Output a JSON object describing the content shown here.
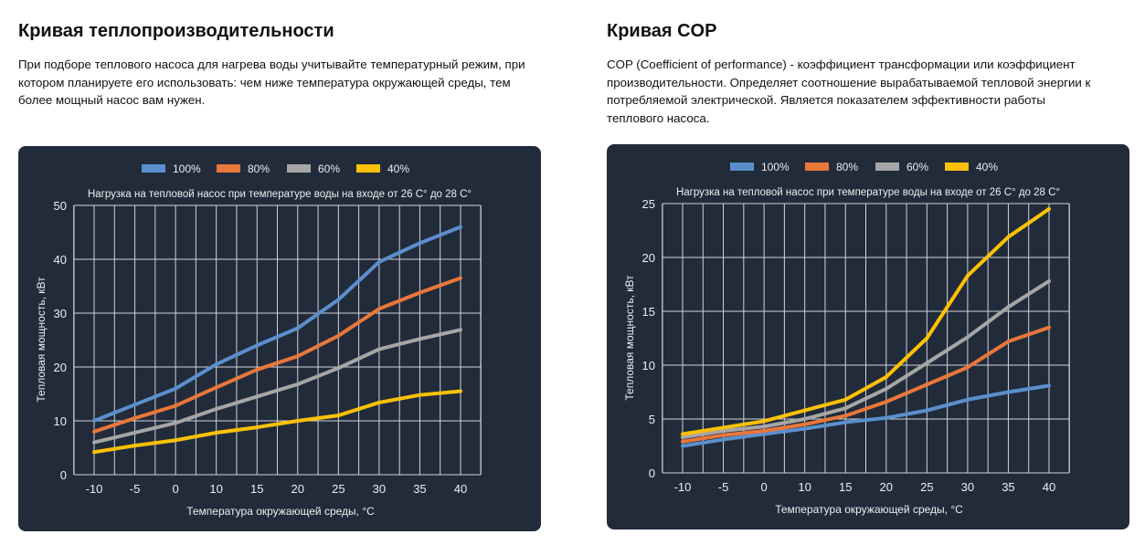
{
  "left": {
    "title": "Кривая теплопроизводительности",
    "text": "При подборе теплового насоса для нагрева воды учитывайте температурный режим, при котором планируете его использовать: чем ниже температура окружающей среды, тем более мощный насос вам нужен."
  },
  "right": {
    "title": "Кривая COP",
    "text": "COP (Coefficient of performance) - коэффициент трансформации или коэффициент производительности. Определяет соотношение вырабатываемой тепловой энергии к потребляемой электрической. Является показателем эффективности работы теплового насоса."
  },
  "chart_data": [
    {
      "type": "line",
      "title": "Нагрузка на тепловой насос при температуре воды на входе от 26 С° до 28 С°",
      "xlabel": "Температура окружающей среды, °C",
      "ylabel": "Тепловая мощность, кВт",
      "categories": [
        "-10",
        "-5",
        "0",
        "10",
        "15",
        "20",
        "25",
        "30",
        "35",
        "40"
      ],
      "ylim": [
        0,
        50
      ],
      "yticks": [
        "0",
        "10",
        "20",
        "30",
        "40",
        "50"
      ],
      "grid": true,
      "legend": "top",
      "series": [
        {
          "name": "100%",
          "color": "#5b8fcc",
          "values": [
            10,
            13,
            16,
            20.5,
            24,
            27.2,
            32.5,
            39.5,
            43,
            46
          ]
        },
        {
          "name": "80%",
          "color": "#e9773a",
          "values": [
            8,
            10.5,
            12.8,
            16.2,
            19.5,
            22,
            25.8,
            30.8,
            33.8,
            36.5
          ]
        },
        {
          "name": "60%",
          "color": "#a6a6a6",
          "values": [
            6,
            7.8,
            9.6,
            12.2,
            14.5,
            16.8,
            19.8,
            23.3,
            25.2,
            26.9
          ]
        },
        {
          "name": "40%",
          "color": "#fdc107",
          "values": [
            4.2,
            5.4,
            6.4,
            7.8,
            8.8,
            10,
            11,
            13.4,
            14.8,
            15.5
          ]
        }
      ]
    },
    {
      "type": "line",
      "title": "Нагрузка на тепловой насос при температуре воды на входе от 26 С° до 28 С°",
      "xlabel": "Температура окружающей среды, °C",
      "ylabel": "Тепловая мощность, кВт",
      "categories": [
        "-10",
        "-5",
        "0",
        "10",
        "15",
        "20",
        "25",
        "30",
        "35",
        "40"
      ],
      "ylim": [
        0,
        25
      ],
      "yticks": [
        "0",
        "5",
        "10",
        "15",
        "20",
        "25"
      ],
      "grid": true,
      "legend": "top",
      "series": [
        {
          "name": "100%",
          "color": "#5b8fcc",
          "values": [
            2.5,
            3.1,
            3.6,
            4.1,
            4.7,
            5.1,
            5.8,
            6.8,
            7.5,
            8.1
          ]
        },
        {
          "name": "80%",
          "color": "#e9773a",
          "values": [
            2.9,
            3.5,
            3.9,
            4.5,
            5.3,
            6.6,
            8.2,
            9.8,
            12.2,
            13.5
          ]
        },
        {
          "name": "60%",
          "color": "#a6a6a6",
          "values": [
            3.3,
            3.9,
            4.3,
            5.0,
            6.0,
            7.8,
            10.2,
            12.6,
            15.4,
            17.8
          ]
        },
        {
          "name": "40%",
          "color": "#fdc107",
          "values": [
            3.6,
            4.2,
            4.8,
            5.8,
            6.8,
            8.9,
            12.5,
            18.3,
            21.9,
            24.5
          ]
        }
      ]
    }
  ]
}
